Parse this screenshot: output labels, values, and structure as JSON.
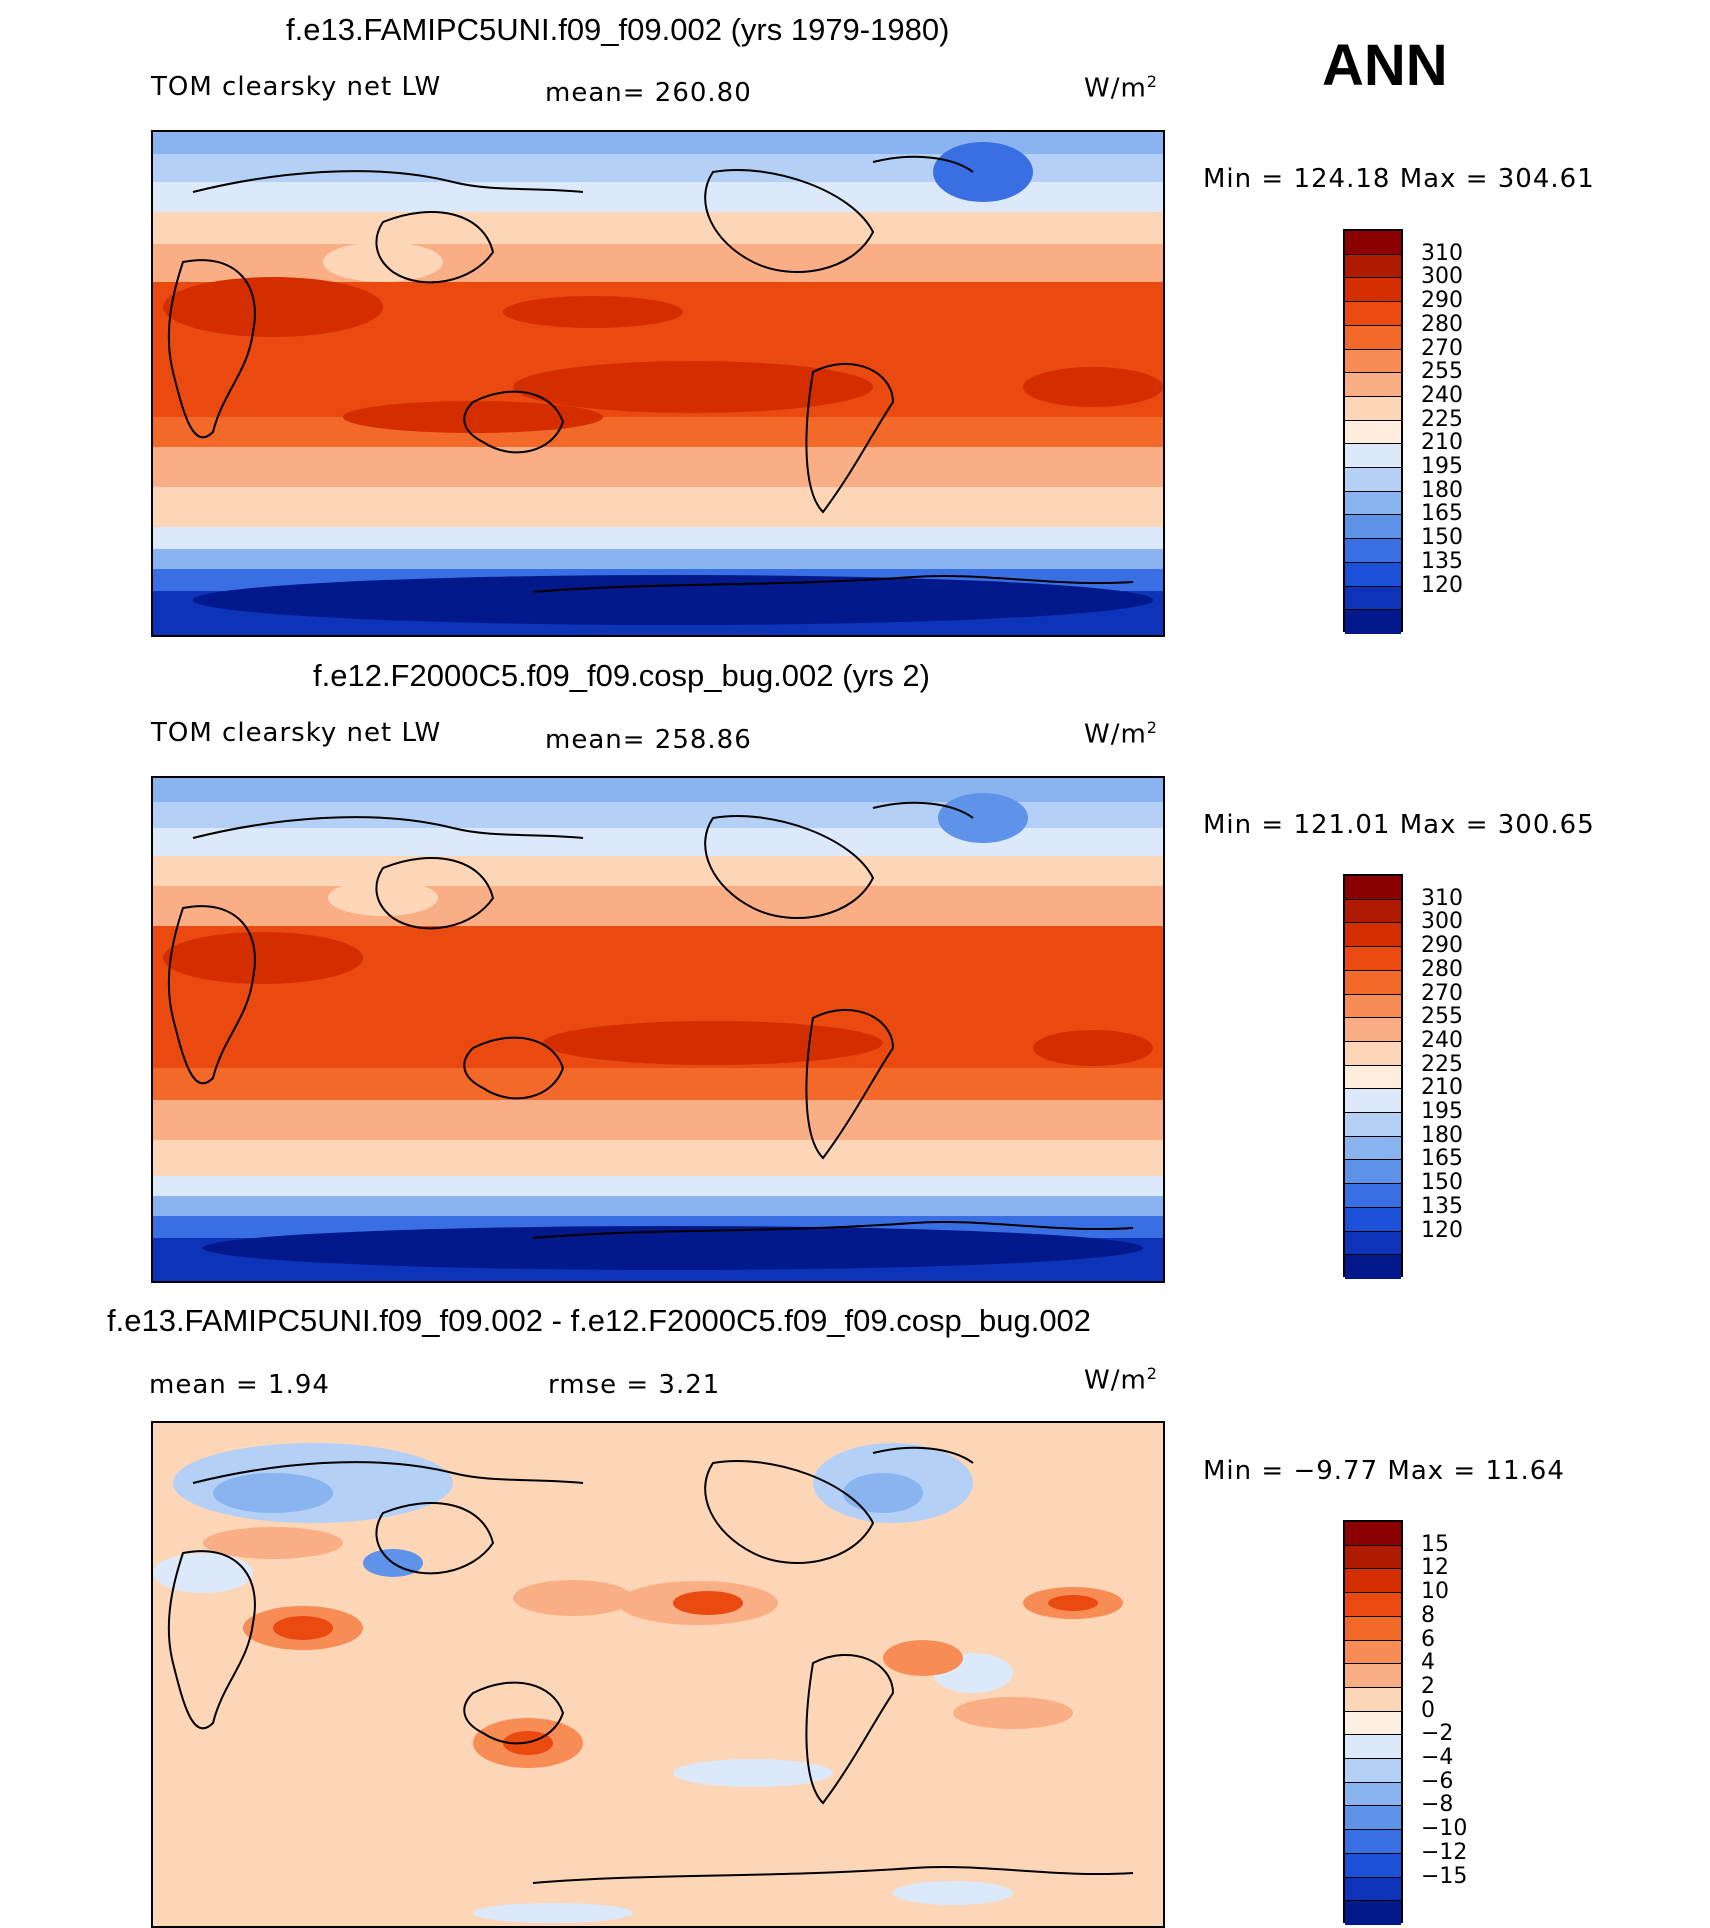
{
  "season": "ANN",
  "units_base": "W/m",
  "units_exp": "2",
  "panels": [
    {
      "title": "f.e13.FAMIPC5UNI.f09_f09.002 (yrs 1979-1980)",
      "variable": "TOM clearsky net LW",
      "stat1": "mean=  260.80",
      "stat2": "",
      "minmax": "Min  =  124.18  Max  =  304.61",
      "kind": "abs"
    },
    {
      "title": "f.e12.F2000C5.f09_f09.cosp_bug.002 (yrs 2)",
      "variable": "TOM clearsky net LW",
      "stat1": "mean=  258.86",
      "stat2": "",
      "minmax": "Min  =  121.01  Max  =  300.65",
      "kind": "abs"
    },
    {
      "title": "f.e13.FAMIPC5UNI.f09_f09.002 - f.e12.F2000C5.f09_f09.cosp_bug.002",
      "variable": "",
      "stat1": "mean  =     1.94",
      "stat2": "rmse  =     3.21",
      "minmax": "Min  =   −9.77  Max  =    11.64",
      "kind": "diff"
    }
  ],
  "abs_colorbar": {
    "labels": [
      "310",
      "300",
      "290",
      "280",
      "270",
      "255",
      "240",
      "225",
      "210",
      "195",
      "180",
      "165",
      "150",
      "135",
      "120"
    ],
    "colors": [
      "#8b0000",
      "#b01a00",
      "#d42e00",
      "#ea4a10",
      "#f2692a",
      "#f78c55",
      "#faae85",
      "#fdd6b8",
      "#ffeedd",
      "#dbe9fb",
      "#b4d0f6",
      "#8ab4f0",
      "#5f93ea",
      "#3a6fe4",
      "#1d50d8",
      "#0d33b8",
      "#03188a"
    ]
  },
  "diff_colorbar": {
    "labels": [
      "15",
      "12",
      "10",
      "8",
      "6",
      "4",
      "2",
      "0",
      "−2",
      "−4",
      "−6",
      "−8",
      "−10",
      "−12",
      "−15"
    ],
    "colors": [
      "#8b0000",
      "#b01a00",
      "#d42e00",
      "#ea4a10",
      "#f2692a",
      "#f78c55",
      "#faae85",
      "#fdd6b8",
      "#fdf0e2",
      "#dbe9fb",
      "#b4d0f6",
      "#8ab4f0",
      "#5f93ea",
      "#3a6fe4",
      "#1d50d8",
      "#0d33b8",
      "#03188a"
    ]
  }
}
